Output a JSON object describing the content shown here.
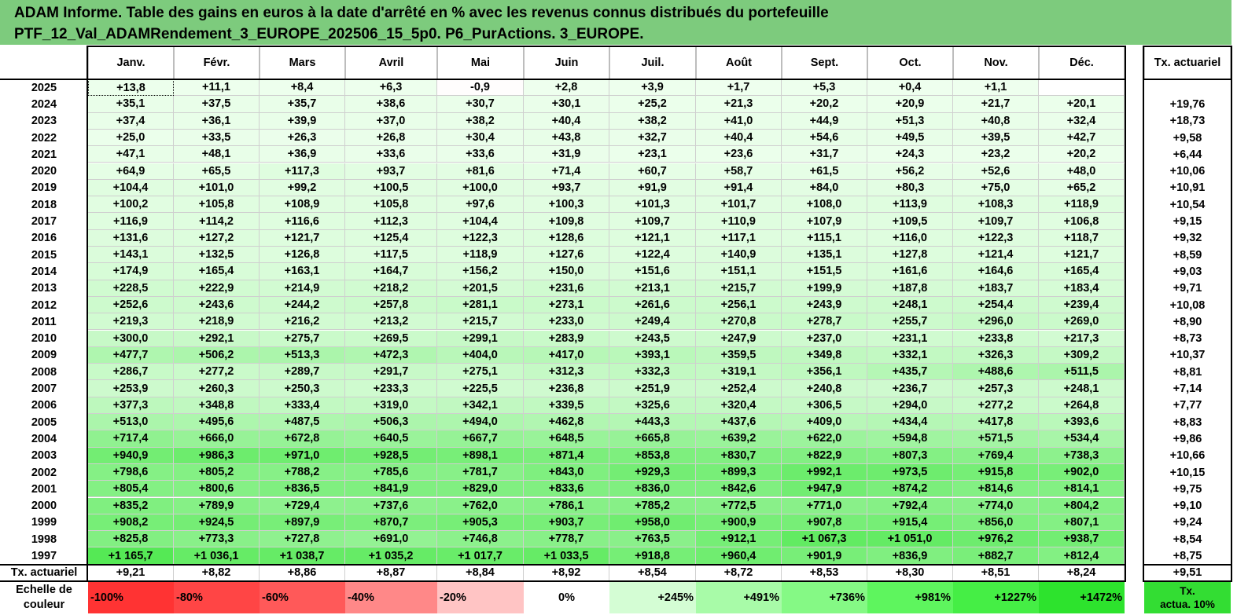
{
  "title": {
    "line1": "ADAM Informe. Table des gains en euros à la date d'arrêté en % avec les revenus connus distribués du portefeuille",
    "line2": "PTF_12_Val_ADAMRendement_3_EUROPE_202506_15_5p0. P6_PurActions. 3_EUROPE."
  },
  "months": [
    "Janv.",
    "Févr.",
    "Mars",
    "Avril",
    "Mai",
    "Juin",
    "Juil.",
    "Août",
    "Sept.",
    "Oct.",
    "Nov.",
    "Déc."
  ],
  "tx_header": "Tx. actuariel",
  "rows": [
    {
      "year": "2025",
      "values": [
        "+13,8",
        "+11,1",
        "+8,4",
        "+6,3",
        "-0,9",
        "+2,8",
        "+3,9",
        "+1,7",
        "+5,3",
        "+0,4",
        "+1,1",
        ""
      ],
      "tx": ""
    },
    {
      "year": "2024",
      "values": [
        "+35,1",
        "+37,5",
        "+35,7",
        "+38,6",
        "+30,7",
        "+30,1",
        "+25,2",
        "+21,3",
        "+20,2",
        "+20,9",
        "+21,7",
        "+20,1"
      ],
      "tx": "+19,76"
    },
    {
      "year": "2023",
      "values": [
        "+37,4",
        "+36,1",
        "+39,9",
        "+37,0",
        "+38,2",
        "+40,4",
        "+38,2",
        "+41,0",
        "+44,9",
        "+51,3",
        "+40,8",
        "+32,4"
      ],
      "tx": "+18,73"
    },
    {
      "year": "2022",
      "values": [
        "+25,0",
        "+33,5",
        "+26,3",
        "+26,8",
        "+30,4",
        "+43,8",
        "+32,7",
        "+40,4",
        "+54,6",
        "+49,5",
        "+39,5",
        "+42,7"
      ],
      "tx": "+9,58"
    },
    {
      "year": "2021",
      "values": [
        "+47,1",
        "+48,1",
        "+36,9",
        "+33,6",
        "+33,6",
        "+31,9",
        "+23,1",
        "+23,6",
        "+31,7",
        "+24,3",
        "+23,2",
        "+20,2"
      ],
      "tx": "+6,44"
    },
    {
      "year": "2020",
      "values": [
        "+64,9",
        "+65,5",
        "+117,3",
        "+93,7",
        "+81,6",
        "+71,4",
        "+60,7",
        "+58,7",
        "+61,5",
        "+56,2",
        "+52,6",
        "+48,0"
      ],
      "tx": "+10,06"
    },
    {
      "year": "2019",
      "values": [
        "+104,4",
        "+101,0",
        "+99,2",
        "+100,5",
        "+100,0",
        "+93,7",
        "+91,9",
        "+91,4",
        "+84,0",
        "+80,3",
        "+75,0",
        "+65,2"
      ],
      "tx": "+10,91"
    },
    {
      "year": "2018",
      "values": [
        "+100,2",
        "+105,8",
        "+108,9",
        "+105,8",
        "+97,6",
        "+100,3",
        "+101,3",
        "+101,7",
        "+108,0",
        "+113,9",
        "+108,3",
        "+118,9"
      ],
      "tx": "+10,54"
    },
    {
      "year": "2017",
      "values": [
        "+116,9",
        "+114,2",
        "+116,6",
        "+112,3",
        "+104,4",
        "+109,8",
        "+109,7",
        "+110,9",
        "+107,9",
        "+109,5",
        "+109,7",
        "+106,8"
      ],
      "tx": "+9,15"
    },
    {
      "year": "2016",
      "values": [
        "+131,6",
        "+127,2",
        "+121,7",
        "+125,4",
        "+122,3",
        "+128,6",
        "+121,1",
        "+117,1",
        "+115,1",
        "+116,0",
        "+122,3",
        "+118,7"
      ],
      "tx": "+9,32"
    },
    {
      "year": "2015",
      "values": [
        "+143,1",
        "+132,5",
        "+126,8",
        "+117,5",
        "+118,9",
        "+127,6",
        "+122,4",
        "+140,9",
        "+135,1",
        "+127,8",
        "+121,4",
        "+121,7"
      ],
      "tx": "+8,59"
    },
    {
      "year": "2014",
      "values": [
        "+174,9",
        "+165,4",
        "+163,1",
        "+164,7",
        "+156,2",
        "+150,0",
        "+151,6",
        "+151,1",
        "+151,5",
        "+161,6",
        "+164,6",
        "+165,4"
      ],
      "tx": "+9,03"
    },
    {
      "year": "2013",
      "values": [
        "+228,5",
        "+222,9",
        "+214,9",
        "+218,2",
        "+201,5",
        "+231,6",
        "+213,1",
        "+215,7",
        "+199,9",
        "+187,8",
        "+183,7",
        "+183,4"
      ],
      "tx": "+9,71"
    },
    {
      "year": "2012",
      "values": [
        "+252,6",
        "+243,6",
        "+244,2",
        "+257,8",
        "+281,1",
        "+273,1",
        "+261,6",
        "+256,1",
        "+243,9",
        "+248,1",
        "+254,4",
        "+239,4"
      ],
      "tx": "+10,08"
    },
    {
      "year": "2011",
      "values": [
        "+219,3",
        "+218,9",
        "+216,2",
        "+213,2",
        "+215,7",
        "+233,0",
        "+249,4",
        "+270,8",
        "+278,7",
        "+255,7",
        "+296,0",
        "+269,0"
      ],
      "tx": "+8,90"
    },
    {
      "year": "2010",
      "values": [
        "+300,0",
        "+292,1",
        "+275,7",
        "+269,5",
        "+299,1",
        "+283,9",
        "+243,5",
        "+247,9",
        "+237,0",
        "+231,1",
        "+233,8",
        "+217,3"
      ],
      "tx": "+8,73"
    },
    {
      "year": "2009",
      "values": [
        "+477,7",
        "+506,2",
        "+513,3",
        "+472,3",
        "+404,0",
        "+417,0",
        "+393,1",
        "+359,5",
        "+349,8",
        "+332,1",
        "+326,3",
        "+309,2"
      ],
      "tx": "+10,37"
    },
    {
      "year": "2008",
      "values": [
        "+286,7",
        "+277,2",
        "+289,7",
        "+291,7",
        "+275,1",
        "+312,3",
        "+332,3",
        "+319,1",
        "+356,1",
        "+435,7",
        "+488,6",
        "+511,5"
      ],
      "tx": "+8,81"
    },
    {
      "year": "2007",
      "values": [
        "+253,9",
        "+260,3",
        "+250,3",
        "+233,3",
        "+225,5",
        "+236,8",
        "+251,9",
        "+252,4",
        "+240,8",
        "+236,7",
        "+257,3",
        "+248,1"
      ],
      "tx": "+7,14"
    },
    {
      "year": "2006",
      "values": [
        "+377,3",
        "+348,8",
        "+333,4",
        "+319,0",
        "+342,1",
        "+339,5",
        "+325,6",
        "+320,4",
        "+306,5",
        "+294,0",
        "+277,2",
        "+264,8"
      ],
      "tx": "+7,77"
    },
    {
      "year": "2005",
      "values": [
        "+513,0",
        "+495,6",
        "+487,5",
        "+506,3",
        "+494,0",
        "+462,8",
        "+443,3",
        "+437,6",
        "+409,0",
        "+434,4",
        "+417,8",
        "+393,6"
      ],
      "tx": "+8,83"
    },
    {
      "year": "2004",
      "values": [
        "+717,4",
        "+666,0",
        "+672,8",
        "+640,5",
        "+667,7",
        "+648,5",
        "+665,8",
        "+639,2",
        "+622,0",
        "+594,8",
        "+571,5",
        "+534,4"
      ],
      "tx": "+9,86"
    },
    {
      "year": "2003",
      "values": [
        "+940,9",
        "+986,3",
        "+971,0",
        "+928,5",
        "+898,1",
        "+871,4",
        "+853,8",
        "+830,7",
        "+822,9",
        "+807,3",
        "+769,4",
        "+738,3"
      ],
      "tx": "+10,66"
    },
    {
      "year": "2002",
      "values": [
        "+798,6",
        "+805,2",
        "+788,2",
        "+785,6",
        "+781,7",
        "+843,0",
        "+929,3",
        "+899,3",
        "+992,1",
        "+973,5",
        "+915,8",
        "+902,0"
      ],
      "tx": "+10,15"
    },
    {
      "year": "2001",
      "values": [
        "+805,4",
        "+800,6",
        "+836,5",
        "+841,9",
        "+829,0",
        "+833,6",
        "+836,0",
        "+842,6",
        "+947,9",
        "+874,2",
        "+814,6",
        "+814,1"
      ],
      "tx": "+9,75"
    },
    {
      "year": "2000",
      "values": [
        "+835,2",
        "+789,9",
        "+729,4",
        "+737,6",
        "+762,0",
        "+786,1",
        "+785,2",
        "+772,5",
        "+771,0",
        "+792,4",
        "+774,0",
        "+804,2"
      ],
      "tx": "+9,10"
    },
    {
      "year": "1999",
      "values": [
        "+908,2",
        "+924,5",
        "+897,9",
        "+870,7",
        "+905,3",
        "+903,7",
        "+958,0",
        "+900,9",
        "+907,8",
        "+915,4",
        "+856,0",
        "+807,1"
      ],
      "tx": "+9,24"
    },
    {
      "year": "1998",
      "values": [
        "+825,8",
        "+773,3",
        "+727,8",
        "+691,0",
        "+746,8",
        "+778,7",
        "+763,5",
        "+912,1",
        "+1 067,3",
        "+1 051,0",
        "+976,2",
        "+938,7"
      ],
      "tx": "+8,54"
    },
    {
      "year": "1997",
      "values": [
        "+1 165,7",
        "+1 036,1",
        "+1 038,7",
        "+1 035,2",
        "+1 017,7",
        "+1 033,5",
        "+918,8",
        "+960,4",
        "+901,9",
        "+836,9",
        "+882,7",
        "+812,4"
      ],
      "tx": "+8,75"
    }
  ],
  "tx_row": {
    "label": "Tx. actuariel",
    "values": [
      "+9,21",
      "+8,82",
      "+8,86",
      "+8,87",
      "+8,84",
      "+8,92",
      "+8,54",
      "+8,72",
      "+8,53",
      "+8,30",
      "+8,51",
      "+8,24"
    ],
    "total": "+9,51"
  },
  "scale": {
    "label_line1": "Echelle de",
    "label_line2": "couleur",
    "steps": [
      {
        "label": "-100%",
        "color": "#ff3333"
      },
      {
        "label": "-80%",
        "color": "#ff4545"
      },
      {
        "label": "-60%",
        "color": "#ff5959"
      },
      {
        "label": "-40%",
        "color": "#ff8888"
      },
      {
        "label": "-20%",
        "color": "#ffc4c4"
      },
      {
        "label": "0%",
        "color": "#ffffff"
      },
      {
        "label": "+245%",
        "color": "#d4fdd4"
      },
      {
        "label": "+491%",
        "color": "#a8fba8"
      },
      {
        "label": "+736%",
        "color": "#85f985"
      },
      {
        "label": "+981%",
        "color": "#5ef55e"
      },
      {
        "label": "+1227%",
        "color": "#45ee45"
      },
      {
        "label": "+1472%",
        "color": "#2de32d"
      }
    ],
    "tx_label_line1": "Tx.",
    "tx_label_line2": "actua. 10%",
    "tx_color": "#33dd33"
  },
  "colors": {
    "title_bg": "#7dcb7d",
    "zero": "#ffffff",
    "negative": "#ff3333",
    "max_green": "#2de32d"
  }
}
